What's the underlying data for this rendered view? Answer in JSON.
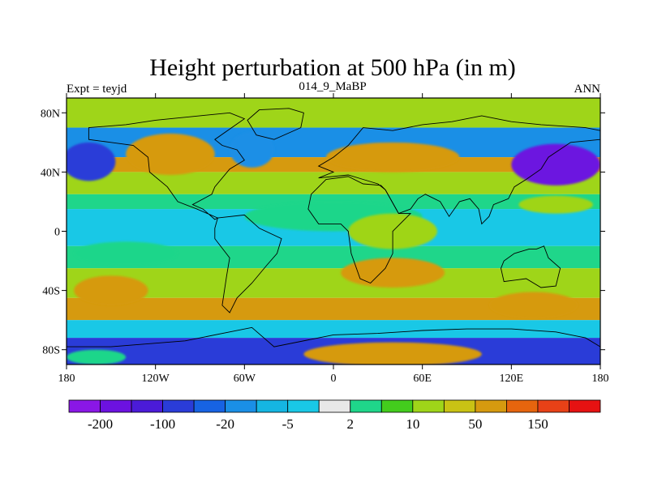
{
  "chart_data": {
    "type": "contour-map",
    "title": "Height perturbation at 500 hPa (in m)",
    "left_string": "Expt = teyjd",
    "center_string": "014_9_MaBP",
    "right_string": "ANN",
    "x_range": [
      -180,
      180
    ],
    "y_range": [
      -90,
      90
    ],
    "x_ticks": [
      {
        "value": -180,
        "label": "180"
      },
      {
        "value": -120,
        "label": "120W"
      },
      {
        "value": -60,
        "label": "60W"
      },
      {
        "value": 0,
        "label": "0"
      },
      {
        "value": 60,
        "label": "60E"
      },
      {
        "value": 120,
        "label": "120E"
      },
      {
        "value": 180,
        "label": "180"
      }
    ],
    "y_ticks": [
      {
        "value": 80,
        "label": "80N"
      },
      {
        "value": 40,
        "label": "40N"
      },
      {
        "value": 0,
        "label": "0"
      },
      {
        "value": -40,
        "label": "40S"
      },
      {
        "value": -80,
        "label": "80S"
      }
    ],
    "colorbar": {
      "colors": [
        "#8a17e6",
        "#6c12e0",
        "#4b1bd8",
        "#2a3cd8",
        "#1763e3",
        "#1a8fe6",
        "#15b6e2",
        "#19c8e6",
        "#e8e8e8",
        "#1fd68a",
        "#43cc1d",
        "#9fd519",
        "#c9c214",
        "#d69a0f",
        "#e6650e",
        "#e84117",
        "#e61212"
      ],
      "labels": [
        {
          "boundary": 1,
          "text": "-200"
        },
        {
          "boundary": 3,
          "text": "-100"
        },
        {
          "boundary": 5,
          "text": "-20"
        },
        {
          "boundary": 7,
          "text": "-5"
        },
        {
          "boundary": 9,
          "text": "2"
        },
        {
          "boundary": 11,
          "text": "10"
        },
        {
          "boundary": 13,
          "text": "50"
        },
        {
          "boundary": 15,
          "text": "150"
        }
      ]
    },
    "field_bands": [
      {
        "lat": [
          90,
          70
        ],
        "value": 10
      },
      {
        "lat": [
          70,
          50
        ],
        "value": -20
      },
      {
        "lat": [
          50,
          40
        ],
        "value": 50
      },
      {
        "lat": [
          40,
          25
        ],
        "value": 10
      },
      {
        "lat": [
          25,
          15
        ],
        "value": 2
      },
      {
        "lat": [
          15,
          -10
        ],
        "value": -5
      },
      {
        "lat": [
          -10,
          -25
        ],
        "value": 2
      },
      {
        "lat": [
          -25,
          -45
        ],
        "value": 10
      },
      {
        "lat": [
          -45,
          -60
        ],
        "value": 50
      },
      {
        "lat": [
          -60,
          -72
        ],
        "value": -5
      },
      {
        "lat": [
          -72,
          -90
        ],
        "value": -100
      }
    ],
    "field_blobs": [
      {
        "lon": -165,
        "lat": 47,
        "rx": 18,
        "ry": 13,
        "value": -100
      },
      {
        "lon": -110,
        "lat": 52,
        "rx": 30,
        "ry": 14,
        "value": 50
      },
      {
        "lon": -55,
        "lat": 55,
        "rx": 15,
        "ry": 12,
        "value": -20
      },
      {
        "lon": 40,
        "lat": 50,
        "rx": 45,
        "ry": 10,
        "value": 50
      },
      {
        "lon": 150,
        "lat": 45,
        "rx": 30,
        "ry": 14,
        "value": -200
      },
      {
        "lon": 150,
        "lat": 18,
        "rx": 25,
        "ry": 6,
        "value": 10
      },
      {
        "lon": -140,
        "lat": -15,
        "rx": 35,
        "ry": 8,
        "value": 2
      },
      {
        "lon": 0,
        "lat": 10,
        "rx": 60,
        "ry": 10,
        "value": 2
      },
      {
        "lon": 40,
        "lat": 0,
        "rx": 30,
        "ry": 12,
        "value": 10
      },
      {
        "lon": 40,
        "lat": -28,
        "rx": 35,
        "ry": 10,
        "value": 50
      },
      {
        "lon": -150,
        "lat": -40,
        "rx": 25,
        "ry": 10,
        "value": 50
      },
      {
        "lon": 135,
        "lat": -50,
        "rx": 30,
        "ry": 9,
        "value": 50
      },
      {
        "lon": 40,
        "lat": -83,
        "rx": 60,
        "ry": 8,
        "value": 50
      },
      {
        "lon": -160,
        "lat": -85,
        "rx": 20,
        "ry": 5,
        "value": 2
      }
    ],
    "land_outlines": [
      [
        [
          -165,
          70
        ],
        [
          -140,
          72
        ],
        [
          -120,
          75
        ],
        [
          -90,
          78
        ],
        [
          -70,
          80
        ],
        [
          -60,
          76
        ],
        [
          -80,
          62
        ],
        [
          -75,
          58
        ],
        [
          -65,
          55
        ],
        [
          -60,
          48
        ],
        [
          -70,
          42
        ],
        [
          -80,
          30
        ],
        [
          -82,
          25
        ],
        [
          -95,
          18
        ],
        [
          -88,
          15
        ],
        [
          -80,
          8
        ],
        [
          -78,
          9
        ],
        [
          -85,
          12
        ],
        [
          -92,
          15
        ],
        [
          -105,
          20
        ],
        [
          -112,
          30
        ],
        [
          -124,
          40
        ],
        [
          -125,
          50
        ],
        [
          -135,
          58
        ],
        [
          -150,
          60
        ],
        [
          -165,
          62
        ],
        [
          -165,
          70
        ]
      ],
      [
        [
          -50,
          82
        ],
        [
          -30,
          83
        ],
        [
          -20,
          80
        ],
        [
          -22,
          70
        ],
        [
          -40,
          62
        ],
        [
          -52,
          65
        ],
        [
          -58,
          75
        ],
        [
          -50,
          82
        ]
      ],
      [
        [
          -78,
          9
        ],
        [
          -60,
          11
        ],
        [
          -50,
          2
        ],
        [
          -35,
          -5
        ],
        [
          -38,
          -15
        ],
        [
          -45,
          -23
        ],
        [
          -55,
          -35
        ],
        [
          -65,
          -45
        ],
        [
          -70,
          -55
        ],
        [
          -75,
          -50
        ],
        [
          -72,
          -30
        ],
        [
          -70,
          -18
        ],
        [
          -80,
          -5
        ],
        [
          -80,
          2
        ],
        [
          -78,
          9
        ]
      ],
      [
        [
          -10,
          36
        ],
        [
          0,
          40
        ],
        [
          -10,
          44
        ],
        [
          0,
          50
        ],
        [
          5,
          54
        ],
        [
          10,
          58
        ],
        [
          20,
          70
        ],
        [
          40,
          68
        ],
        [
          60,
          72
        ],
        [
          80,
          74
        ],
        [
          100,
          78
        ],
        [
          120,
          74
        ],
        [
          140,
          72
        ],
        [
          170,
          70
        ],
        [
          180,
          68
        ],
        [
          180,
          62
        ],
        [
          160,
          60
        ],
        [
          145,
          50
        ],
        [
          140,
          42
        ],
        [
          130,
          35
        ],
        [
          122,
          30
        ],
        [
          118,
          22
        ],
        [
          108,
          18
        ],
        [
          105,
          10
        ],
        [
          100,
          5
        ],
        [
          98,
          15
        ],
        [
          92,
          22
        ],
        [
          85,
          20
        ],
        [
          78,
          10
        ],
        [
          72,
          20
        ],
        [
          62,
          25
        ],
        [
          57,
          22
        ],
        [
          52,
          15
        ],
        [
          44,
          12
        ],
        [
          35,
          28
        ],
        [
          30,
          32
        ],
        [
          20,
          35
        ],
        [
          10,
          38
        ],
        [
          -10,
          36
        ]
      ],
      [
        [
          -17,
          15
        ],
        [
          -15,
          25
        ],
        [
          -5,
          35
        ],
        [
          10,
          37
        ],
        [
          20,
          32
        ],
        [
          32,
          31
        ],
        [
          35,
          28
        ],
        [
          44,
          12
        ],
        [
          52,
          12
        ],
        [
          40,
          0
        ],
        [
          40,
          -15
        ],
        [
          35,
          -25
        ],
        [
          25,
          -35
        ],
        [
          18,
          -32
        ],
        [
          12,
          -15
        ],
        [
          10,
          0
        ],
        [
          5,
          5
        ],
        [
          -10,
          5
        ],
        [
          -17,
          15
        ]
      ],
      [
        [
          115,
          -20
        ],
        [
          122,
          -15
        ],
        [
          132,
          -12
        ],
        [
          137,
          -12
        ],
        [
          142,
          -10
        ],
        [
          145,
          -18
        ],
        [
          153,
          -25
        ],
        [
          150,
          -37
        ],
        [
          140,
          -38
        ],
        [
          130,
          -32
        ],
        [
          115,
          -34
        ],
        [
          113,
          -25
        ],
        [
          115,
          -20
        ]
      ],
      [
        [
          -180,
          -78
        ],
        [
          -150,
          -78
        ],
        [
          -100,
          -74
        ],
        [
          -70,
          -68
        ],
        [
          -55,
          -65
        ],
        [
          -40,
          -78
        ],
        [
          0,
          -70
        ],
        [
          30,
          -69
        ],
        [
          60,
          -67
        ],
        [
          90,
          -66
        ],
        [
          120,
          -66
        ],
        [
          150,
          -68
        ],
        [
          170,
          -72
        ],
        [
          180,
          -78
        ],
        [
          180,
          -90
        ],
        [
          -180,
          -90
        ],
        [
          -180,
          -78
        ]
      ]
    ]
  }
}
